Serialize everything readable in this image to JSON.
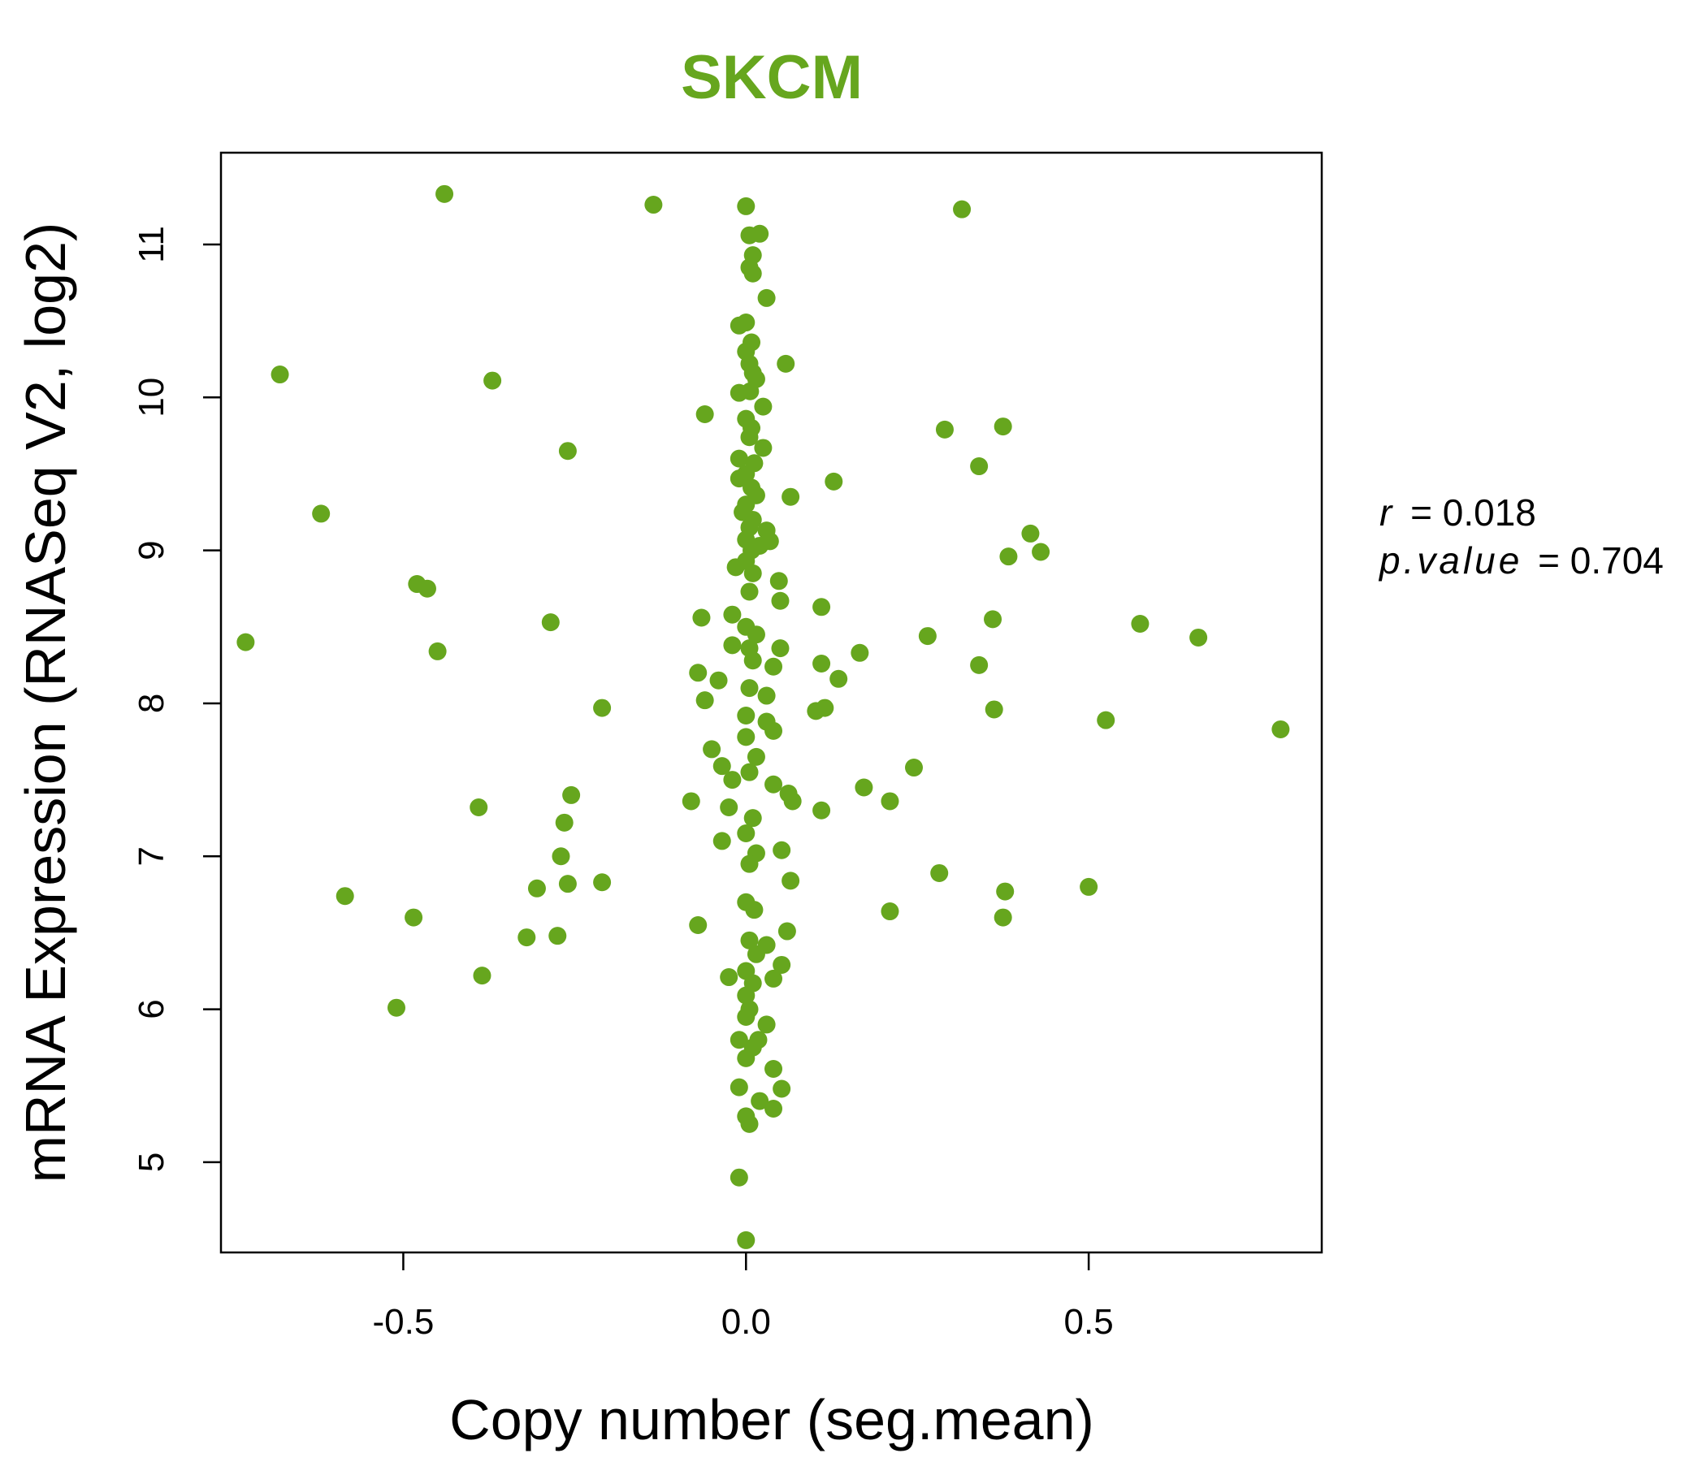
{
  "chart_data": {
    "type": "scatter",
    "title": "SKCM",
    "xlabel": "Copy number (seg.mean)",
    "ylabel": "mRNA Expression (RNASeq V2, log2)",
    "xlim": [
      -0.766,
      0.84
    ],
    "ylim": [
      4.41,
      11.6
    ],
    "xticks": [
      -0.5,
      0.0,
      0.5
    ],
    "xtick_labels": [
      "-0.5",
      "0.0",
      "0.5"
    ],
    "yticks": [
      5,
      6,
      7,
      8,
      9,
      10,
      11
    ],
    "ytick_labels": [
      "5",
      "6",
      "7",
      "8",
      "9",
      "10",
      "11"
    ],
    "grid": false,
    "point_color": "#66a61e",
    "annotation": {
      "r_label": "r",
      "r_value": "0.018",
      "p_label": "p.value",
      "p_value": "0.704"
    },
    "points": [
      [
        -0.44,
        11.33
      ],
      [
        -0.135,
        11.26
      ],
      [
        0.0,
        11.25
      ],
      [
        0.315,
        11.23
      ],
      [
        0.02,
        11.07
      ],
      [
        0.005,
        11.06
      ],
      [
        0.01,
        10.93
      ],
      [
        0.005,
        10.85
      ],
      [
        0.01,
        10.81
      ],
      [
        0.03,
        10.65
      ],
      [
        0.0,
        10.49
      ],
      [
        -0.01,
        10.47
      ],
      [
        0.008,
        10.36
      ],
      [
        0.0,
        10.3
      ],
      [
        0.005,
        10.22
      ],
      [
        0.058,
        10.22
      ],
      [
        0.01,
        10.16
      ],
      [
        -0.68,
        10.15
      ],
      [
        0.015,
        10.12
      ],
      [
        -0.37,
        10.11
      ],
      [
        0.006,
        10.04
      ],
      [
        -0.01,
        10.03
      ],
      [
        0.025,
        9.94
      ],
      [
        -0.06,
        9.89
      ],
      [
        0.0,
        9.86
      ],
      [
        0.008,
        9.8
      ],
      [
        0.29,
        9.79
      ],
      [
        0.375,
        9.81
      ],
      [
        0.005,
        9.74
      ],
      [
        0.025,
        9.67
      ],
      [
        -0.26,
        9.65
      ],
      [
        -0.01,
        9.6
      ],
      [
        0.012,
        9.57
      ],
      [
        0.34,
        9.55
      ],
      [
        0.0,
        9.5
      ],
      [
        -0.01,
        9.47
      ],
      [
        0.128,
        9.45
      ],
      [
        0.008,
        9.41
      ],
      [
        0.015,
        9.36
      ],
      [
        0.065,
        9.35
      ],
      [
        0.0,
        9.3
      ],
      [
        -0.005,
        9.25
      ],
      [
        -0.62,
        9.24
      ],
      [
        0.01,
        9.2
      ],
      [
        0.005,
        9.15
      ],
      [
        0.03,
        9.13
      ],
      [
        0.415,
        9.11
      ],
      [
        0.0,
        9.07
      ],
      [
        0.02,
        9.03
      ],
      [
        0.035,
        9.06
      ],
      [
        0.008,
        9.0
      ],
      [
        0.43,
        8.99
      ],
      [
        0.383,
        8.96
      ],
      [
        0.0,
        8.93
      ],
      [
        -0.015,
        8.89
      ],
      [
        0.01,
        8.85
      ],
      [
        0.048,
        8.8
      ],
      [
        -0.48,
        8.78
      ],
      [
        -0.465,
        8.75
      ],
      [
        0.005,
        8.73
      ],
      [
        0.05,
        8.67
      ],
      [
        0.11,
        8.63
      ],
      [
        -0.02,
        8.58
      ],
      [
        -0.065,
        8.56
      ],
      [
        0.36,
        8.55
      ],
      [
        0.575,
        8.52
      ],
      [
        -0.285,
        8.53
      ],
      [
        0.0,
        8.5
      ],
      [
        0.015,
        8.45
      ],
      [
        0.265,
        8.44
      ],
      [
        0.66,
        8.43
      ],
      [
        -0.73,
        8.4
      ],
      [
        -0.02,
        8.38
      ],
      [
        0.005,
        8.36
      ],
      [
        0.05,
        8.36
      ],
      [
        -0.45,
        8.34
      ],
      [
        0.166,
        8.33
      ],
      [
        0.01,
        8.28
      ],
      [
        0.11,
        8.26
      ],
      [
        0.04,
        8.24
      ],
      [
        0.34,
        8.25
      ],
      [
        -0.07,
        8.2
      ],
      [
        -0.04,
        8.15
      ],
      [
        0.135,
        8.16
      ],
      [
        0.005,
        8.1
      ],
      [
        0.03,
        8.05
      ],
      [
        -0.06,
        8.02
      ],
      [
        -0.21,
        7.97
      ],
      [
        0.102,
        7.95
      ],
      [
        0.115,
        7.97
      ],
      [
        0.362,
        7.96
      ],
      [
        0.0,
        7.92
      ],
      [
        0.525,
        7.89
      ],
      [
        0.03,
        7.88
      ],
      [
        0.04,
        7.82
      ],
      [
        0.78,
        7.83
      ],
      [
        0.0,
        7.78
      ],
      [
        -0.05,
        7.7
      ],
      [
        0.015,
        7.65
      ],
      [
        -0.035,
        7.59
      ],
      [
        0.245,
        7.58
      ],
      [
        0.005,
        7.55
      ],
      [
        -0.02,
        7.5
      ],
      [
        0.04,
        7.47
      ],
      [
        0.172,
        7.45
      ],
      [
        0.062,
        7.41
      ],
      [
        -0.255,
        7.4
      ],
      [
        -0.08,
        7.36
      ],
      [
        0.068,
        7.36
      ],
      [
        0.21,
        7.36
      ],
      [
        -0.39,
        7.32
      ],
      [
        0.11,
        7.3
      ],
      [
        -0.025,
        7.32
      ],
      [
        0.01,
        7.25
      ],
      [
        -0.265,
        7.22
      ],
      [
        0.0,
        7.15
      ],
      [
        -0.035,
        7.1
      ],
      [
        0.052,
        7.04
      ],
      [
        0.015,
        7.02
      ],
      [
        -0.27,
        7.0
      ],
      [
        0.005,
        6.95
      ],
      [
        0.282,
        6.89
      ],
      [
        0.065,
        6.84
      ],
      [
        -0.21,
        6.83
      ],
      [
        -0.26,
        6.82
      ],
      [
        0.5,
        6.8
      ],
      [
        -0.305,
        6.79
      ],
      [
        0.378,
        6.77
      ],
      [
        -0.585,
        6.74
      ],
      [
        0.0,
        6.7
      ],
      [
        0.012,
        6.65
      ],
      [
        0.21,
        6.64
      ],
      [
        -0.485,
        6.6
      ],
      [
        0.375,
        6.6
      ],
      [
        -0.07,
        6.55
      ],
      [
        0.06,
        6.51
      ],
      [
        -0.275,
        6.48
      ],
      [
        -0.32,
        6.47
      ],
      [
        0.005,
        6.45
      ],
      [
        0.03,
        6.42
      ],
      [
        0.015,
        6.36
      ],
      [
        0.052,
        6.29
      ],
      [
        0.0,
        6.25
      ],
      [
        -0.025,
        6.21
      ],
      [
        -0.385,
        6.22
      ],
      [
        0.04,
        6.2
      ],
      [
        0.01,
        6.17
      ],
      [
        0.0,
        6.09
      ],
      [
        -0.51,
        6.01
      ],
      [
        0.005,
        6.0
      ],
      [
        0.0,
        5.95
      ],
      [
        0.03,
        5.9
      ],
      [
        -0.01,
        5.8
      ],
      [
        0.018,
        5.8
      ],
      [
        0.01,
        5.75
      ],
      [
        0.0,
        5.68
      ],
      [
        0.04,
        5.61
      ],
      [
        -0.01,
        5.49
      ],
      [
        0.052,
        5.48
      ],
      [
        0.02,
        5.4
      ],
      [
        0.04,
        5.35
      ],
      [
        0.0,
        5.3
      ],
      [
        0.005,
        5.25
      ],
      [
        -0.01,
        4.9
      ],
      [
        0.0,
        4.49
      ]
    ]
  }
}
